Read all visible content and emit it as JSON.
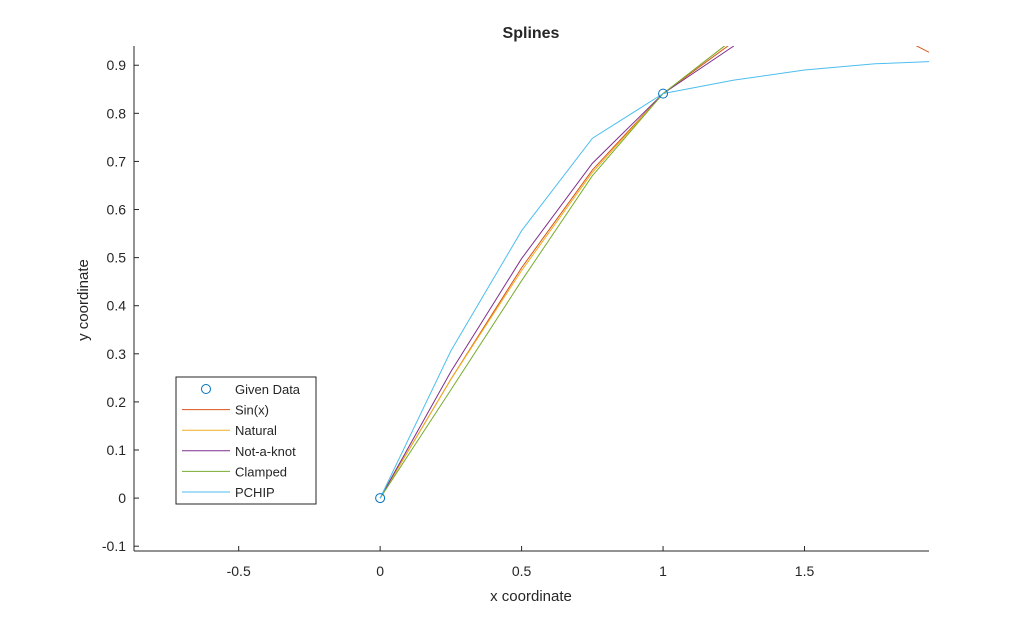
{
  "chart_data": {
    "type": "line",
    "title": "Splines",
    "xlabel": "x coordinate",
    "ylabel": "y coordinate",
    "xlim": [
      -0.87,
      1.94
    ],
    "ylim": [
      -0.11,
      0.94
    ],
    "grid": false,
    "legend_position": "bottom-left",
    "xticks": [
      -0.5,
      0,
      0.5,
      1,
      1.5
    ],
    "xtick_labels": [
      "-0.5",
      "0",
      "0.5",
      "1",
      "1.5"
    ],
    "yticks": [
      -0.1,
      0,
      0.1,
      0.2,
      0.3,
      0.4,
      0.5,
      0.6,
      0.7,
      0.8,
      0.9
    ],
    "ytick_labels": [
      "-0.1",
      "0",
      "0.1",
      "0.2",
      "0.3",
      "0.4",
      "0.5",
      "0.6",
      "0.7",
      "0.8",
      "0.9"
    ],
    "given_data": {
      "name": "Given Data",
      "color": "#0072bd",
      "x": [
        0,
        1,
        2
      ],
      "y": [
        0,
        0.841,
        0.909
      ]
    },
    "series": [
      {
        "name": "Sin(x)",
        "color": "#d95319",
        "x": [
          0,
          0.25,
          0.5,
          0.75,
          1,
          1.25,
          1.75,
          2
        ],
        "y": [
          0,
          0.247,
          0.479,
          0.682,
          0.841,
          0.949,
          0.984,
          0.909
        ]
      },
      {
        "name": "Natural",
        "color": "#edb120",
        "x": [
          0,
          0.25,
          0.5,
          0.75,
          1,
          1.25
        ],
        "y": [
          0,
          0.247,
          0.473,
          0.677,
          0.841,
          0.955
        ]
      },
      {
        "name": "Not-a-knot",
        "color": "#7e2f8e",
        "x": [
          0,
          0.25,
          0.5,
          0.75,
          1,
          1.25
        ],
        "y": [
          0,
          0.263,
          0.498,
          0.696,
          0.841,
          0.94
        ]
      },
      {
        "name": "Clamped",
        "color": "#77ac30",
        "x": [
          0,
          0.25,
          0.5,
          0.75,
          1,
          1.25
        ],
        "y": [
          0,
          0.225,
          0.452,
          0.67,
          0.841,
          0.955
        ]
      },
      {
        "name": "PCHIP",
        "color": "#4dbeee",
        "x": [
          0,
          0.25,
          0.5,
          0.75,
          1,
          1.25,
          1.5,
          1.75,
          2
        ],
        "y": [
          0,
          0.306,
          0.556,
          0.748,
          0.841,
          0.869,
          0.89,
          0.903,
          0.909
        ]
      }
    ]
  }
}
